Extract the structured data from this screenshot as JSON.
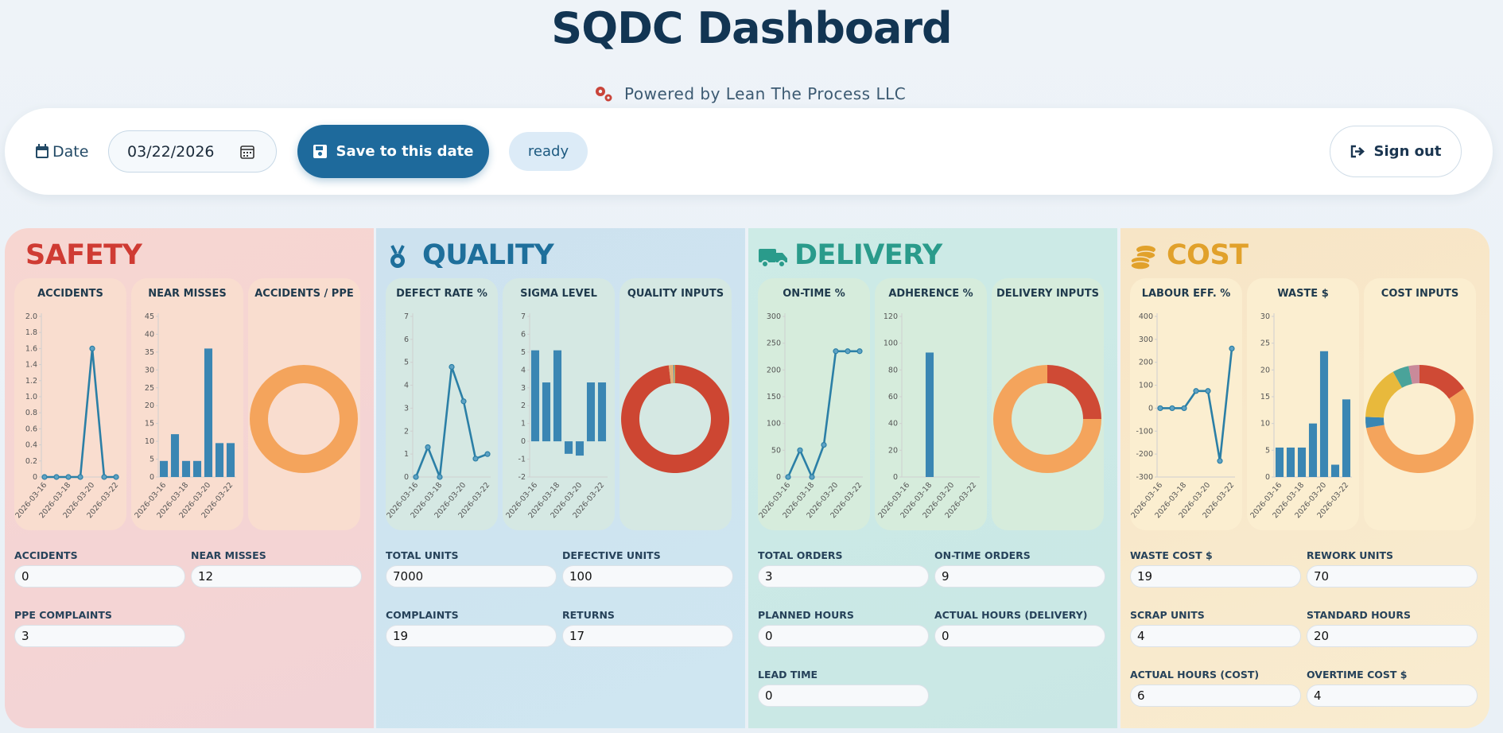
{
  "header": {
    "title": "SQDC Dashboard",
    "subtitle": "Powered by Lean The Process LLC"
  },
  "toolbar": {
    "date_label": "Date",
    "date_value": "03/22/2026",
    "save": "Save to this date",
    "status": "ready",
    "sign_out": "Sign out"
  },
  "panels": [
    {
      "title": "SAFETY",
      "charts": [
        {
          "type": "line",
          "title": "ACCIDENTS",
          "color": "#2b7fa6",
          "categories": [
            "2026-03-16",
            null,
            "2026-03-18",
            null,
            "2026-03-20",
            null,
            "2026-03-22"
          ],
          "values": [
            0,
            0,
            0,
            0,
            1.6,
            0,
            0
          ],
          "ylim": [
            0,
            2
          ],
          "yticks": [
            0,
            0.2,
            0.4,
            0.6,
            0.8,
            {
              "value": 1,
              "label": "1.0"
            },
            1.2,
            1.4,
            1.6,
            1.8,
            {
              "value": 2,
              "label": "2.0"
            }
          ]
        },
        {
          "type": "bar",
          "title": "NEAR MISSES",
          "color": "#3a86b3",
          "categories": [
            "2026-03-16",
            null,
            "2026-03-18",
            null,
            "2026-03-20",
            null,
            "2026-03-22"
          ],
          "values": [
            4.5,
            12,
            4.5,
            4.5,
            36,
            9.5,
            9.5
          ],
          "ylim": [
            0,
            45
          ],
          "yticks": [
            0,
            5,
            10,
            15,
            20,
            25,
            30,
            35,
            40,
            45
          ]
        },
        {
          "type": "donut",
          "title": "ACCIDENTS / PPE",
          "values": [
            0,
            3
          ],
          "colors": [
            "#cf4a35",
            "#f4a45c"
          ]
        }
      ],
      "fields": [
        {
          "label": "ACCIDENTS",
          "value": 0
        },
        {
          "label": "NEAR MISSES",
          "value": 12
        },
        {
          "label": "PPE COMPLAINTS",
          "value": 3
        }
      ]
    },
    {
      "title": "QUALITY",
      "charts": [
        {
          "type": "line",
          "title": "DEFECT RATE %",
          "color": "#2b7fa6",
          "categories": [
            "2026-03-16",
            null,
            "2026-03-18",
            null,
            "2026-03-20",
            null,
            "2026-03-22"
          ],
          "values": [
            0,
            1.3,
            0,
            4.8,
            3.3,
            0.8,
            1.0
          ],
          "ylim": [
            0,
            7
          ],
          "yticks": [
            0,
            1,
            2,
            3,
            4,
            5,
            6,
            7
          ]
        },
        {
          "type": "bar",
          "title": "SIGMA LEVEL",
          "color": "#3a86b3",
          "categories": [
            "2026-03-16",
            null,
            "2026-03-18",
            null,
            "2026-03-20",
            null,
            "2026-03-22"
          ],
          "values": [
            5.1,
            3.3,
            5.1,
            -0.7,
            -0.8,
            3.3,
            3.3
          ],
          "ylim": [
            -2,
            7
          ],
          "yticks": [
            -2,
            -1,
            0,
            1,
            2,
            3,
            4,
            5,
            6,
            7
          ]
        },
        {
          "type": "donut",
          "title": "QUALITY INPUTS",
          "values": [
            7000,
            100,
            19,
            17
          ],
          "colors": [
            "#cd4632",
            "#e0b07a",
            "#3a86b3",
            "#e8b93c"
          ]
        }
      ],
      "fields": [
        {
          "label": "TOTAL UNITS",
          "value": 7000
        },
        {
          "label": "DEFECTIVE UNITS",
          "value": 100
        },
        {
          "label": "COMPLAINTS",
          "value": 19
        },
        {
          "label": "RETURNS",
          "value": 17
        }
      ]
    },
    {
      "title": "DELIVERY",
      "charts": [
        {
          "type": "line",
          "title": "ON-TIME %",
          "color": "#2b7fa6",
          "categories": [
            "2026-03-16",
            null,
            "2026-03-18",
            null,
            "2026-03-20",
            null,
            "2026-03-22"
          ],
          "values": [
            0,
            50,
            0,
            60,
            235,
            235,
            235
          ],
          "ylim": [
            0,
            300
          ],
          "yticks": [
            0,
            50,
            100,
            150,
            200,
            250,
            300
          ]
        },
        {
          "type": "bar",
          "title": "ADHERENCE %",
          "color": "#3a86b3",
          "categories": [
            "2026-03-16",
            null,
            "2026-03-18",
            null,
            "2026-03-20",
            null,
            "2026-03-22"
          ],
          "values": [
            null,
            null,
            93,
            null,
            null,
            null,
            null
          ],
          "ylim": [
            0,
            120
          ],
          "yticks": [
            0,
            20,
            40,
            60,
            80,
            100,
            120
          ]
        },
        {
          "type": "donut",
          "title": "DELIVERY INPUTS",
          "values": [
            3,
            9
          ],
          "colors": [
            "#cf4a35",
            "#f4a45c"
          ]
        }
      ],
      "fields": [
        {
          "label": "TOTAL ORDERS",
          "value": 3
        },
        {
          "label": "ON-TIME ORDERS",
          "value": 9
        },
        {
          "label": "PLANNED HOURS",
          "value": 0
        },
        {
          "label": "ACTUAL HOURS (DELIVERY)",
          "value": 0
        },
        {
          "label": "LEAD TIME",
          "value": 0
        }
      ]
    },
    {
      "title": "COST",
      "charts": [
        {
          "type": "line",
          "title": "LABOUR EFF. %",
          "color": "#2b7fa6",
          "categories": [
            "2026-03-16",
            null,
            "2026-03-18",
            null,
            "2026-03-20",
            null,
            "2026-03-22"
          ],
          "values": [
            0,
            0,
            0,
            75,
            75,
            -230,
            260
          ],
          "ylim": [
            -300,
            400
          ],
          "yticks": [
            -300,
            -200,
            -100,
            0,
            100,
            200,
            300,
            400
          ]
        },
        {
          "type": "bar",
          "title": "WASTE $",
          "color": "#3a86b3",
          "categories": [
            "2026-03-16",
            null,
            "2026-03-18",
            null,
            "2026-03-20",
            null,
            "2026-03-22"
          ],
          "values": [
            5.5,
            5.5,
            5.5,
            10,
            23.5,
            2.3,
            14.5
          ],
          "ylim": [
            0,
            30
          ],
          "yticks": [
            0,
            5,
            10,
            15,
            20,
            25,
            30
          ]
        },
        {
          "type": "donut",
          "title": "COST INPUTS",
          "values": [
            19,
            70,
            4,
            20,
            6,
            4
          ],
          "colors": [
            "#cf4a35",
            "#f4a45c",
            "#3a86b3",
            "#e8b93c",
            "#4aa39a",
            "#c98a9a"
          ]
        }
      ],
      "fields": [
        {
          "label": "WASTE COST $",
          "value": 19
        },
        {
          "label": "REWORK UNITS",
          "value": 70
        },
        {
          "label": "SCRAP UNITS",
          "value": 4
        },
        {
          "label": "STANDARD HOURS",
          "value": 20
        },
        {
          "label": "ACTUAL HOURS (COST)",
          "value": 6
        },
        {
          "label": "OVERTIME COST $",
          "value": 4
        }
      ]
    }
  ]
}
